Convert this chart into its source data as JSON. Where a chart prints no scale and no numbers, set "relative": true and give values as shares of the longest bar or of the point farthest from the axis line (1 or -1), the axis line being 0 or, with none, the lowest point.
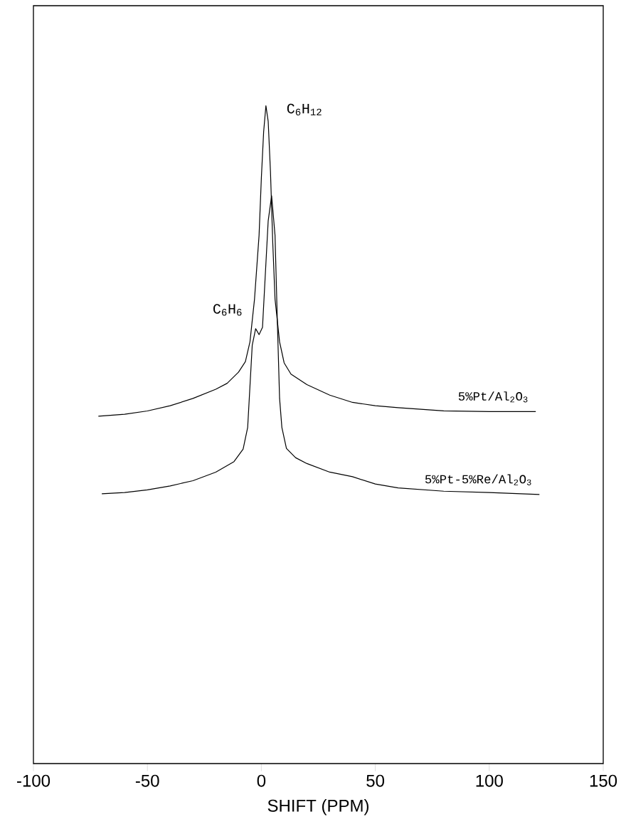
{
  "chart_data": {
    "type": "line",
    "xlabel": "SHIFT (PPM)",
    "xlim": [
      -100,
      150
    ],
    "xticks": [
      -100,
      -50,
      0,
      50,
      100,
      150
    ],
    "relative": true,
    "tick_labels": "x",
    "series": [
      {
        "name": "5%Pt/Al$_{2}$O$_{3}$",
        "color": "#000000",
        "x": [
          -71.5,
          -60,
          -50,
          -40,
          -30,
          -20,
          -15,
          -10,
          -7,
          -5,
          -3,
          -1,
          0,
          1,
          2,
          3,
          4,
          5,
          6,
          8,
          10,
          13,
          20,
          30,
          40,
          50,
          60,
          80,
          100,
          120.4
        ],
        "values": [
          0.528,
          0.531,
          0.536,
          0.544,
          0.555,
          0.569,
          0.578,
          0.595,
          0.611,
          0.641,
          0.706,
          0.803,
          0.89,
          0.96,
          1.0,
          0.976,
          0.9,
          0.792,
          0.706,
          0.641,
          0.609,
          0.592,
          0.576,
          0.56,
          0.549,
          0.544,
          0.541,
          0.536,
          0.535,
          0.535
        ]
      },
      {
        "name": "5%Pt-5%Re/Al$_{2}$O$_{3}$",
        "color": "#000000",
        "x": [
          -70,
          -60,
          -50,
          -40,
          -30,
          -20,
          -12,
          -8,
          -6,
          -4,
          -2.5,
          -1,
          0.5,
          1.5,
          3,
          4.5,
          6,
          7,
          8,
          9,
          11,
          15,
          20,
          30,
          40,
          50,
          60,
          80,
          100,
          122
        ],
        "values": [
          0.41,
          0.412,
          0.416,
          0.422,
          0.43,
          0.443,
          0.459,
          0.478,
          0.511,
          0.636,
          0.661,
          0.652,
          0.663,
          0.728,
          0.825,
          0.863,
          0.803,
          0.674,
          0.555,
          0.511,
          0.479,
          0.465,
          0.456,
          0.443,
          0.436,
          0.425,
          0.419,
          0.414,
          0.412,
          0.409
        ]
      }
    ],
    "annotations": [
      {
        "text": "C$_{6}$H$_{12}$",
        "x": 2,
        "y": 1.0
      },
      {
        "text": "C$_{6}$H$_{6}$",
        "x": -2.5,
        "y": 0.661
      }
    ]
  }
}
